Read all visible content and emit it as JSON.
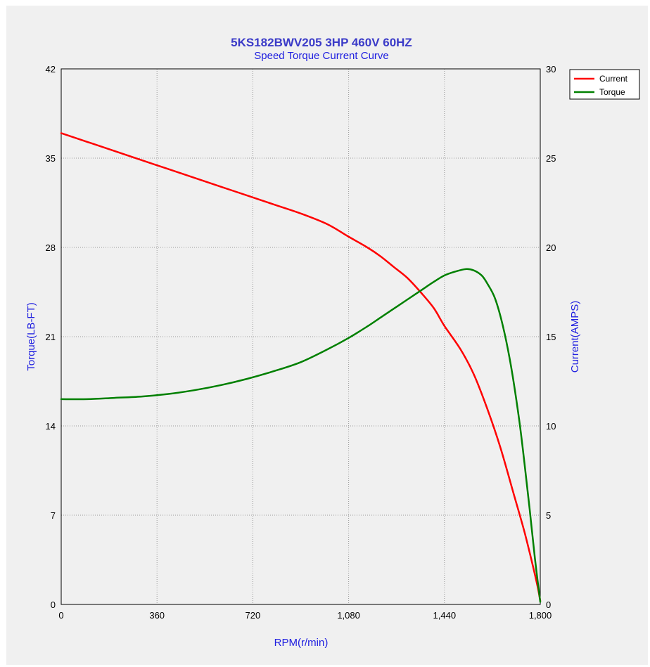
{
  "chart_data": {
    "type": "line",
    "title": "5KS182BWV205  3HP  460V  60HZ",
    "subtitle": "Speed Torque Current Curve",
    "xlabel": "RPM(r/min)",
    "ylabel_left": "Torque(LB-FT)",
    "ylabel_right": "Current(AMPS)",
    "xlim": [
      0,
      1800
    ],
    "ylim_left": [
      0,
      42
    ],
    "ylim_right": [
      0,
      30
    ],
    "x_ticks": [
      "0",
      "360",
      "720",
      "1,080",
      "1,440",
      "1,800"
    ],
    "y_left_ticks": [
      "0",
      "7",
      "14",
      "21",
      "28",
      "35",
      "42"
    ],
    "y_right_ticks": [
      "0",
      "5",
      "10",
      "15",
      "20",
      "25",
      "30"
    ],
    "grid": true,
    "legend_position": "top-right, outside plot",
    "series": [
      {
        "name": "Current",
        "axis": "right",
        "color": "#ff0000",
        "x": [
          0,
          100,
          200,
          300,
          400,
          500,
          600,
          700,
          800,
          900,
          1000,
          1080,
          1150,
          1200,
          1250,
          1300,
          1350,
          1400,
          1440,
          1500,
          1550,
          1600,
          1650,
          1700,
          1740,
          1770,
          1790,
          1800
        ],
        "y": [
          26.4,
          25.9,
          25.4,
          24.9,
          24.4,
          23.9,
          23.4,
          22.9,
          22.4,
          21.9,
          21.3,
          20.6,
          20.0,
          19.5,
          18.9,
          18.3,
          17.5,
          16.6,
          15.6,
          14.3,
          12.9,
          11.0,
          8.8,
          6.2,
          4.1,
          2.3,
          1.0,
          0.2
        ]
      },
      {
        "name": "Torque",
        "axis": "left",
        "color": "#008000",
        "x": [
          0,
          100,
          200,
          300,
          400,
          500,
          600,
          700,
          800,
          900,
          1000,
          1080,
          1150,
          1200,
          1250,
          1300,
          1350,
          1400,
          1440,
          1480,
          1520,
          1550,
          1580,
          1600,
          1630,
          1660,
          1690,
          1720,
          1740,
          1760,
          1780,
          1800
        ],
        "y": [
          16.1,
          16.1,
          16.2,
          16.3,
          16.5,
          16.8,
          17.2,
          17.7,
          18.3,
          19.0,
          20.0,
          20.9,
          21.8,
          22.5,
          23.2,
          23.9,
          24.6,
          25.3,
          25.8,
          26.1,
          26.3,
          26.2,
          25.8,
          25.2,
          24.0,
          21.8,
          18.7,
          14.6,
          11.2,
          7.5,
          3.6,
          0.2
        ]
      }
    ]
  }
}
